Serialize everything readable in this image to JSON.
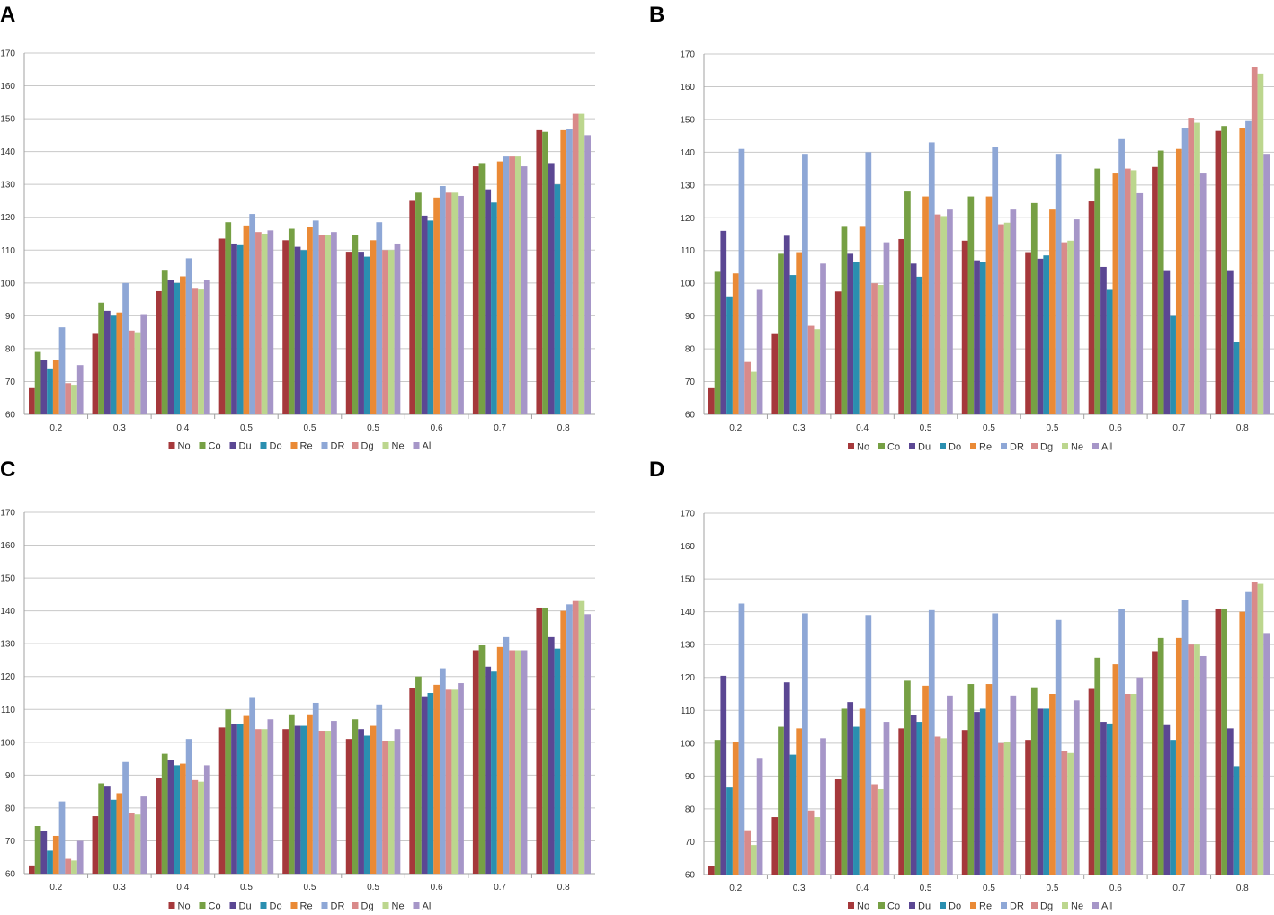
{
  "colors": {
    "No": "#a5383b",
    "Co": "#76a044",
    "Du": "#5b4793",
    "Do": "#2a8fb0",
    "Re": "#ea8a36",
    "DR": "#8ea7d6",
    "Dg": "#d98a8a",
    "Ne": "#bcd68e",
    "All": "#a696c8"
  },
  "chart_data": [
    {
      "panel": "A",
      "type": "bar",
      "categories": [
        "0.2",
        "0.3",
        "0.4",
        "0.5",
        "0.5",
        "0.5",
        "0.6",
        "0.7",
        "0.8"
      ],
      "yticks": [
        "60",
        "70",
        "80",
        "90",
        "100",
        "110",
        "120",
        "130",
        "140",
        "150",
        "160",
        "170"
      ],
      "ylim": [
        60,
        170
      ],
      "series": [
        {
          "name": "No",
          "values": [
            68,
            84.5,
            97.5,
            113.5,
            113,
            109.5,
            125,
            135.5,
            146.5
          ]
        },
        {
          "name": "Co",
          "values": [
            79,
            94,
            104,
            118.5,
            116.5,
            114.5,
            127.5,
            136.5,
            146
          ]
        },
        {
          "name": "Du",
          "values": [
            76.5,
            91.5,
            101,
            112,
            111,
            109.5,
            120.5,
            128.5,
            136.5
          ]
        },
        {
          "name": "Do",
          "values": [
            74,
            90,
            100,
            111.5,
            110,
            108,
            119,
            124.5,
            130
          ]
        },
        {
          "name": "Re",
          "values": [
            76.5,
            91,
            102,
            117.5,
            117,
            113,
            126,
            137,
            146.5
          ]
        },
        {
          "name": "DR",
          "values": [
            86.5,
            100,
            107.5,
            121,
            119,
            118.5,
            129.5,
            138.5,
            147
          ]
        },
        {
          "name": "Dg",
          "values": [
            69.5,
            85.5,
            98.5,
            115.5,
            114.5,
            110,
            127.5,
            138.5,
            151.5
          ]
        },
        {
          "name": "Ne",
          "values": [
            69,
            85,
            98,
            115,
            114.5,
            110,
            127.5,
            138.5,
            151.5
          ]
        },
        {
          "name": "All",
          "values": [
            75,
            90.5,
            101,
            116,
            115.5,
            112,
            126.5,
            135.5,
            145
          ]
        }
      ]
    },
    {
      "panel": "B",
      "type": "bar",
      "categories": [
        "0.2",
        "0.3",
        "0.4",
        "0.5",
        "0.5",
        "0.5",
        "0.6",
        "0.7",
        "0.8"
      ],
      "yticks": [
        "60",
        "70",
        "80",
        "90",
        "100",
        "110",
        "120",
        "130",
        "140",
        "150",
        "160",
        "170"
      ],
      "ylim": [
        60,
        170
      ],
      "series": [
        {
          "name": "No",
          "values": [
            68,
            84.5,
            97.5,
            113.5,
            113,
            109.5,
            125,
            135.5,
            146.5
          ]
        },
        {
          "name": "Co",
          "values": [
            103.5,
            109,
            117.5,
            128,
            126.5,
            124.5,
            135,
            140.5,
            148
          ]
        },
        {
          "name": "Du",
          "values": [
            116,
            114.5,
            109,
            106,
            107,
            107.5,
            105,
            104,
            104
          ]
        },
        {
          "name": "Do",
          "values": [
            96,
            102.5,
            106.5,
            102,
            106.5,
            108.5,
            98,
            90,
            82
          ]
        },
        {
          "name": "Re",
          "values": [
            103,
            109.5,
            117.5,
            126.5,
            126.5,
            122.5,
            133.5,
            141,
            147.5
          ]
        },
        {
          "name": "DR",
          "values": [
            141,
            139.5,
            140,
            143,
            141.5,
            139.5,
            144,
            147.5,
            149.5
          ]
        },
        {
          "name": "Dg",
          "values": [
            76,
            87,
            100,
            121,
            118,
            112.5,
            135,
            150.5,
            166
          ]
        },
        {
          "name": "Ne",
          "values": [
            73,
            86,
            99.5,
            120.5,
            118.5,
            113,
            134.5,
            149,
            164
          ]
        },
        {
          "name": "All",
          "values": [
            98,
            106,
            112.5,
            122.5,
            122.5,
            119.5,
            127.5,
            133.5,
            139.5
          ]
        }
      ]
    },
    {
      "panel": "C",
      "type": "bar",
      "categories": [
        "0.2",
        "0.3",
        "0.4",
        "0.5",
        "0.5",
        "0.5",
        "0.6",
        "0.7",
        "0.8"
      ],
      "yticks": [
        "60",
        "70",
        "80",
        "90",
        "100",
        "110",
        "120",
        "130",
        "140",
        "150",
        "160",
        "170"
      ],
      "ylim": [
        60,
        170
      ],
      "series": [
        {
          "name": "No",
          "values": [
            62.5,
            77.5,
            89,
            104.5,
            104,
            101,
            116.5,
            128,
            141
          ]
        },
        {
          "name": "Co",
          "values": [
            74.5,
            87.5,
            96.5,
            110,
            108.5,
            107,
            120,
            129.5,
            141
          ]
        },
        {
          "name": "Du",
          "values": [
            73,
            86.5,
            94.5,
            105.5,
            105,
            104,
            114,
            123,
            132
          ]
        },
        {
          "name": "Do",
          "values": [
            67,
            82.5,
            93,
            105.5,
            105,
            102,
            115,
            121.5,
            128.5
          ]
        },
        {
          "name": "Re",
          "values": [
            71.5,
            84.5,
            93.5,
            108,
            108.5,
            105,
            117.5,
            129,
            140
          ]
        },
        {
          "name": "DR",
          "values": [
            82,
            94,
            101,
            113.5,
            112,
            111.5,
            122.5,
            132,
            142
          ]
        },
        {
          "name": "Dg",
          "values": [
            64.5,
            78.5,
            88.5,
            104,
            103.5,
            100.5,
            116,
            128,
            143
          ]
        },
        {
          "name": "Ne",
          "values": [
            64,
            78,
            88,
            104,
            103.5,
            100.5,
            116,
            128,
            143
          ]
        },
        {
          "name": "All",
          "values": [
            70,
            83.5,
            93,
            107,
            106.5,
            104,
            118,
            128,
            139
          ]
        }
      ]
    },
    {
      "panel": "D",
      "type": "bar",
      "categories": [
        "0.2",
        "0.3",
        "0.4",
        "0.5",
        "0.5",
        "0.5",
        "0.6",
        "0.7",
        "0.8"
      ],
      "yticks": [
        "60",
        "70",
        "80",
        "90",
        "100",
        "110",
        "120",
        "130",
        "140",
        "150",
        "160",
        "170"
      ],
      "ylim": [
        60,
        170
      ],
      "series": [
        {
          "name": "No",
          "values": [
            62.5,
            77.5,
            89,
            104.5,
            104,
            101,
            116.5,
            128,
            141
          ]
        },
        {
          "name": "Co",
          "values": [
            101,
            105,
            110.5,
            119,
            118,
            117,
            126,
            132,
            141
          ]
        },
        {
          "name": "Du",
          "values": [
            120.5,
            118.5,
            112.5,
            108.5,
            109.5,
            110.5,
            106.5,
            105.5,
            104.5
          ]
        },
        {
          "name": "Do",
          "values": [
            86.5,
            96.5,
            105,
            106.5,
            110.5,
            110.5,
            106,
            101,
            93
          ]
        },
        {
          "name": "Re",
          "values": [
            100.5,
            104.5,
            110.5,
            117.5,
            118,
            115,
            124,
            132,
            140
          ]
        },
        {
          "name": "DR",
          "values": [
            142.5,
            139.5,
            139,
            140.5,
            139.5,
            137.5,
            141,
            143.5,
            146
          ]
        },
        {
          "name": "Dg",
          "values": [
            73.5,
            79.5,
            87.5,
            102,
            100,
            97.5,
            115,
            130,
            149
          ]
        },
        {
          "name": "Ne",
          "values": [
            69,
            77.5,
            86,
            101.5,
            100.5,
            97,
            115,
            130,
            148.5
          ]
        },
        {
          "name": "All",
          "values": [
            95.5,
            101.5,
            106.5,
            114.5,
            114.5,
            113,
            120,
            126.5,
            133.5
          ]
        }
      ]
    }
  ]
}
